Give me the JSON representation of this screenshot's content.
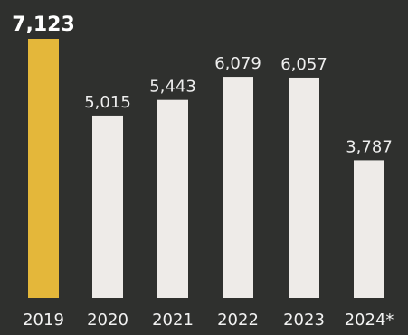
{
  "chart_data": {
    "type": "bar",
    "categories": [
      "2019",
      "2020",
      "2021",
      "2022",
      "2023",
      "2024*"
    ],
    "values": [
      7123,
      5015,
      5443,
      6079,
      6057,
      3787
    ],
    "value_labels": [
      "7,123",
      "5,015",
      "5,443",
      "6,079",
      "6,057",
      "3,787"
    ],
    "ylim": [
      0,
      7500
    ],
    "highlight_index": 0,
    "colors": {
      "background": "#2f302e",
      "bar": "#eeebe8",
      "highlight": "#e4b73a",
      "text": "#f2f2f2"
    }
  }
}
